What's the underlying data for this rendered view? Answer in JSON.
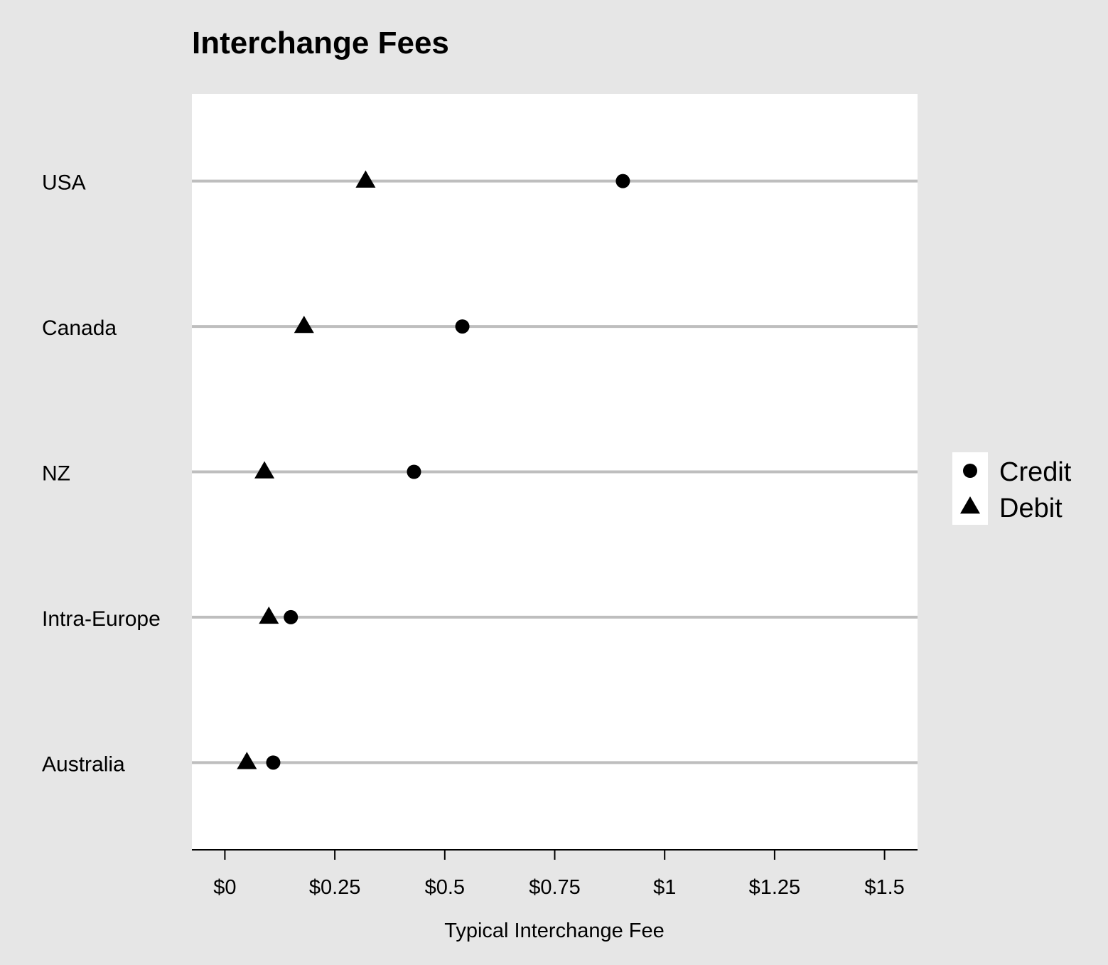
{
  "chart_data": {
    "type": "scatter",
    "title": "Interchange Fees",
    "xlabel": "Typical Interchange Fee",
    "ylabel": "",
    "xlim": [
      -0.075,
      1.575
    ],
    "x_ticks": [
      0,
      0.25,
      0.5,
      0.75,
      1,
      1.25,
      1.5
    ],
    "x_tick_labels": [
      "$0",
      "$0.25",
      "$0.5",
      "$0.75",
      "$1",
      "$1.25",
      "$1.5"
    ],
    "categories": [
      "USA",
      "Canada",
      "NZ",
      "Intra-Europe",
      "Australia"
    ],
    "series": [
      {
        "name": "Credit",
        "marker": "circle",
        "values": [
          0.905,
          0.54,
          0.43,
          0.15,
          0.11
        ]
      },
      {
        "name": "Debit",
        "marker": "triangle",
        "values": [
          0.32,
          0.18,
          0.09,
          0.1,
          0.05
        ]
      }
    ],
    "grid": "horizontal",
    "legend_position": "right",
    "colors": {
      "background": "#e6e6e6",
      "panel": "#ffffff",
      "gridline": "#bebebe",
      "marker": "#000000"
    }
  }
}
